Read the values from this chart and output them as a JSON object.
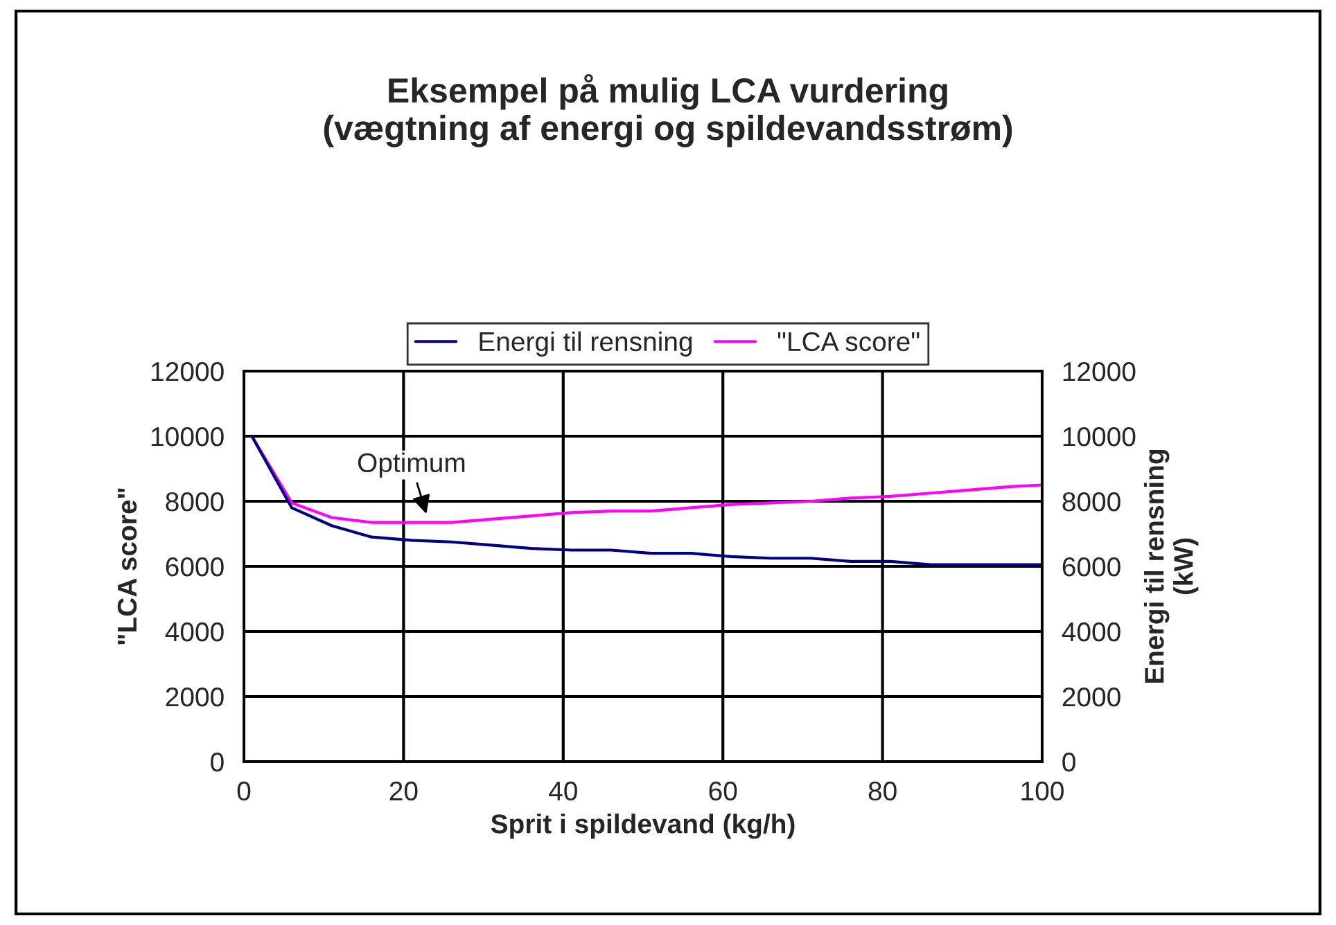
{
  "chart_data": {
    "type": "line",
    "title": "Eksempel på mulig LCA vurdering\n(vægtning af energi og spildevandsstrøm)",
    "xlabel": "Sprit i spildevand (kg/h)",
    "ylabel": "\"LCA score\"",
    "y2label": "Energi til rensning\n(kW)",
    "x": [
      1,
      6,
      11,
      16,
      21,
      26,
      31,
      36,
      41,
      46,
      51,
      56,
      61,
      66,
      71,
      76,
      81,
      86,
      91,
      96,
      100
    ],
    "series": [
      {
        "name": "Energi til rensning",
        "color": "#000080",
        "axis": "y2",
        "values": [
          10000,
          7800,
          7250,
          6900,
          6800,
          6750,
          6650,
          6550,
          6500,
          6500,
          6400,
          6400,
          6300,
          6250,
          6250,
          6150,
          6150,
          6050,
          6050,
          6050,
          6050
        ]
      },
      {
        "name": "\"LCA score\"",
        "color": "#ff00ff",
        "values": [
          10000,
          7950,
          7500,
          7350,
          7350,
          7350,
          7450,
          7550,
          7650,
          7700,
          7700,
          7800,
          7900,
          7950,
          8000,
          8100,
          8150,
          8250,
          8350,
          8450,
          8500
        ]
      }
    ],
    "xlim": [
      0,
      100
    ],
    "xticks": [
      0,
      20,
      40,
      60,
      80,
      100
    ],
    "ylim": [
      0,
      12000
    ],
    "yticks": [
      0,
      2000,
      4000,
      6000,
      8000,
      10000,
      12000
    ],
    "y2lim": [
      0,
      12000
    ],
    "y2ticks": [
      0,
      2000,
      4000,
      6000,
      8000,
      10000,
      12000
    ],
    "annotations": [
      {
        "text": "Optimum",
        "x": 23,
        "y": 7500
      }
    ],
    "grid": true,
    "legend": "top",
    "marker": "none",
    "line_style": "solid"
  }
}
